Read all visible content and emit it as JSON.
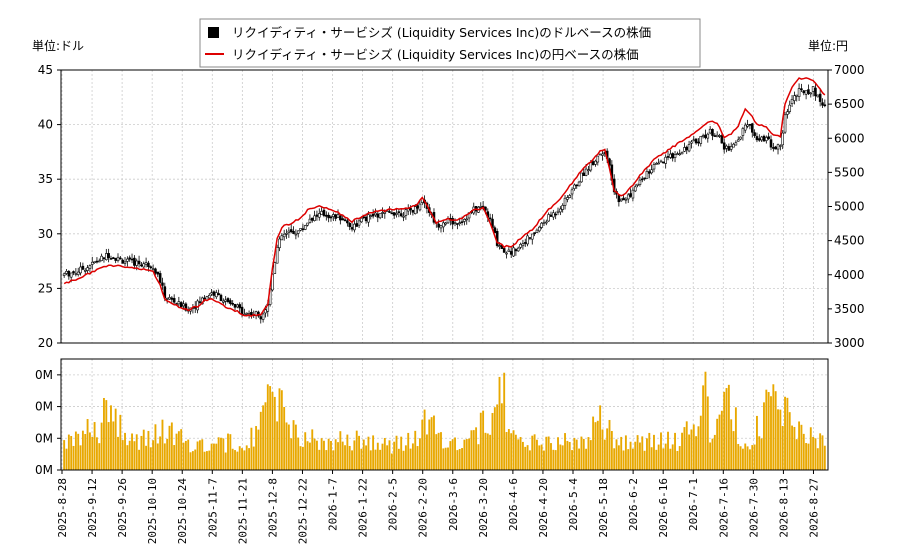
{
  "chart_data": {
    "type": "candlestick-line-bar",
    "legend": {
      "placement": "top-center",
      "entries": [
        {
          "label": "リクイディティ・サービシズ (Liquidity Services Inc)のドルベースの株価",
          "color": "#000000",
          "marker": "square"
        },
        {
          "label": "リクイディティ・サービシズ (Liquidity Services Inc)の円ベースの株価",
          "color": "#dd0000",
          "marker": "line"
        }
      ]
    },
    "left_unit": "単位:ドル",
    "right_unit": "単位:円",
    "left_axis": {
      "min": 20,
      "max": 45,
      "ticks": [
        "20",
        "25",
        "30",
        "35",
        "40",
        "45"
      ],
      "tick_values": [
        20,
        25,
        30,
        35,
        40,
        45
      ]
    },
    "right_axis": {
      "min": 3000,
      "max": 7000,
      "ticks": [
        "3000",
        "3500",
        "4000",
        "4500",
        "5000",
        "5500",
        "6000",
        "6500",
        "7000"
      ],
      "tick_values": [
        3000,
        3500,
        4000,
        4500,
        5000,
        5500,
        6000,
        6500,
        7000
      ]
    },
    "volume_axis": {
      "ticks": [
        "0M",
        "0M",
        "0M",
        "0M"
      ],
      "tick_values": [
        0,
        1,
        2,
        3
      ],
      "max": 3.5
    },
    "x_ticks": [
      "2025-8-28",
      "2025-9-12",
      "2025-9-26",
      "2025-10-10",
      "2025-10-24",
      "2025-11-7",
      "2025-11-21",
      "2025-12-8",
      "2025-12-22",
      "2026-1-7",
      "2026-1-22",
      "2026-2-5",
      "2026-2-20",
      "2026-3-6",
      "2026-3-20",
      "2026-4-6",
      "2026-4-20",
      "2026-5-4",
      "2026-5-18",
      "2026-6-2",
      "2026-6-16",
      "2026-7-1",
      "2026-7-16",
      "2026-7-30",
      "2026-8-13",
      "2026-8-27"
    ],
    "grid": true,
    "usd_keypoints": [
      [
        0,
        26.3
      ],
      [
        5,
        26.5
      ],
      [
        10,
        27.0
      ],
      [
        15,
        27.6
      ],
      [
        19,
        28.1
      ],
      [
        24,
        27.6
      ],
      [
        28,
        27.4
      ],
      [
        33,
        27.3
      ],
      [
        38,
        27.1
      ],
      [
        41,
        25.7
      ],
      [
        43,
        24.3
      ],
      [
        47,
        23.8
      ],
      [
        50,
        23.4
      ],
      [
        53,
        23.1
      ],
      [
        57,
        23.6
      ],
      [
        60,
        24.2
      ],
      [
        63,
        24.6
      ],
      [
        66,
        24.3
      ],
      [
        70,
        23.6
      ],
      [
        74,
        23.2
      ],
      [
        78,
        22.7
      ],
      [
        81,
        22.7
      ],
      [
        84,
        22.5
      ],
      [
        87,
        23.5
      ],
      [
        89,
        26.5
      ],
      [
        91,
        28.7
      ],
      [
        93,
        29.8
      ],
      [
        97,
        30.1
      ],
      [
        101,
        30.3
      ],
      [
        105,
        31.4
      ],
      [
        110,
        31.8
      ],
      [
        115,
        31.6
      ],
      [
        119,
        31.4
      ],
      [
        123,
        30.6
      ],
      [
        127,
        31.2
      ],
      [
        131,
        31.6
      ],
      [
        135,
        31.7
      ],
      [
        140,
        32.0
      ],
      [
        145,
        31.9
      ],
      [
        150,
        32.3
      ],
      [
        153,
        33.2
      ],
      [
        156,
        32.1
      ],
      [
        159,
        30.8
      ],
      [
        163,
        31.2
      ],
      [
        167,
        31.0
      ],
      [
        171,
        31.4
      ],
      [
        175,
        32.2
      ],
      [
        179,
        32.5
      ],
      [
        182,
        31.2
      ],
      [
        185,
        29.2
      ],
      [
        188,
        28.5
      ],
      [
        191,
        28.3
      ],
      [
        194,
        28.9
      ],
      [
        197,
        29.4
      ],
      [
        200,
        29.8
      ],
      [
        203,
        30.6
      ],
      [
        206,
        31.3
      ],
      [
        210,
        32.0
      ],
      [
        214,
        33.0
      ],
      [
        218,
        34.3
      ],
      [
        222,
        35.6
      ],
      [
        226,
        36.6
      ],
      [
        229,
        37.4
      ],
      [
        231,
        37.7
      ],
      [
        233,
        36.0
      ],
      [
        235,
        33.7
      ],
      [
        238,
        33.0
      ],
      [
        241,
        33.4
      ],
      [
        244,
        34.2
      ],
      [
        248,
        35.3
      ],
      [
        252,
        36.1
      ],
      [
        256,
        36.6
      ],
      [
        260,
        37.2
      ],
      [
        264,
        37.7
      ],
      [
        268,
        38.2
      ],
      [
        272,
        38.8
      ],
      [
        276,
        39.3
      ],
      [
        279,
        39.2
      ],
      [
        282,
        37.8
      ],
      [
        285,
        38.0
      ],
      [
        288,
        38.6
      ],
      [
        291,
        40.0
      ],
      [
        293,
        39.7
      ],
      [
        296,
        38.9
      ],
      [
        300,
        38.7
      ],
      [
        303,
        38.0
      ],
      [
        306,
        37.9
      ],
      [
        308,
        40.8
      ],
      [
        311,
        42.4
      ],
      [
        314,
        43.0
      ],
      [
        317,
        43.1
      ],
      [
        320,
        43.2
      ],
      [
        323,
        42.2
      ],
      [
        325,
        41.8
      ]
    ],
    "jpy_keypoints": [
      [
        0,
        3870
      ],
      [
        5,
        3930
      ],
      [
        10,
        4010
      ],
      [
        15,
        4080
      ],
      [
        19,
        4150
      ],
      [
        24,
        4120
      ],
      [
        28,
        4100
      ],
      [
        33,
        4090
      ],
      [
        38,
        4050
      ],
      [
        41,
        3850
      ],
      [
        43,
        3630
      ],
      [
        47,
        3560
      ],
      [
        50,
        3520
      ],
      [
        53,
        3490
      ],
      [
        57,
        3540
      ],
      [
        60,
        3620
      ],
      [
        63,
        3640
      ],
      [
        66,
        3600
      ],
      [
        70,
        3510
      ],
      [
        74,
        3460
      ],
      [
        78,
        3400
      ],
      [
        81,
        3410
      ],
      [
        84,
        3400
      ],
      [
        87,
        3570
      ],
      [
        89,
        4100
      ],
      [
        91,
        4530
      ],
      [
        93,
        4700
      ],
      [
        97,
        4760
      ],
      [
        101,
        4830
      ],
      [
        105,
        4980
      ],
      [
        110,
        5000
      ],
      [
        115,
        4940
      ],
      [
        119,
        4880
      ],
      [
        123,
        4780
      ],
      [
        127,
        4850
      ],
      [
        131,
        4920
      ],
      [
        135,
        4930
      ],
      [
        140,
        4960
      ],
      [
        145,
        4960
      ],
      [
        150,
        5010
      ],
      [
        153,
        5120
      ],
      [
        156,
        4960
      ],
      [
        159,
        4760
      ],
      [
        163,
        4820
      ],
      [
        167,
        4800
      ],
      [
        171,
        4850
      ],
      [
        175,
        4950
      ],
      [
        179,
        4970
      ],
      [
        182,
        4770
      ],
      [
        185,
        4480
      ],
      [
        188,
        4410
      ],
      [
        191,
        4420
      ],
      [
        194,
        4500
      ],
      [
        197,
        4590
      ],
      [
        200,
        4660
      ],
      [
        203,
        4790
      ],
      [
        206,
        4920
      ],
      [
        210,
        5040
      ],
      [
        214,
        5210
      ],
      [
        218,
        5390
      ],
      [
        222,
        5560
      ],
      [
        226,
        5700
      ],
      [
        229,
        5810
      ],
      [
        231,
        5840
      ],
      [
        233,
        5570
      ],
      [
        235,
        5230
      ],
      [
        238,
        5150
      ],
      [
        241,
        5230
      ],
      [
        244,
        5370
      ],
      [
        248,
        5540
      ],
      [
        252,
        5680
      ],
      [
        256,
        5780
      ],
      [
        260,
        5870
      ],
      [
        264,
        5960
      ],
      [
        268,
        6040
      ],
      [
        272,
        6160
      ],
      [
        276,
        6250
      ],
      [
        279,
        6230
      ],
      [
        282,
        6000
      ],
      [
        285,
        6060
      ],
      [
        288,
        6190
      ],
      [
        291,
        6430
      ],
      [
        293,
        6360
      ],
      [
        296,
        6210
      ],
      [
        300,
        6170
      ],
      [
        303,
        6050
      ],
      [
        306,
        6020
      ],
      [
        308,
        6500
      ],
      [
        311,
        6760
      ],
      [
        314,
        6880
      ],
      [
        317,
        6870
      ],
      [
        320,
        6850
      ],
      [
        323,
        6720
      ],
      [
        325,
        6640
      ]
    ],
    "volume_keypoints": [
      [
        0,
        1.0
      ],
      [
        15,
        1.4
      ],
      [
        19,
        2.3
      ],
      [
        28,
        1.0
      ],
      [
        35,
        1.0
      ],
      [
        42,
        1.3
      ],
      [
        55,
        0.9
      ],
      [
        70,
        0.9
      ],
      [
        83,
        1.1
      ],
      [
        89,
        3.2
      ],
      [
        91,
        2.3
      ],
      [
        100,
        1.1
      ],
      [
        112,
        0.9
      ],
      [
        123,
        1.0
      ],
      [
        131,
        1.0
      ],
      [
        140,
        0.8
      ],
      [
        150,
        1.0
      ],
      [
        155,
        1.6
      ],
      [
        165,
        0.9
      ],
      [
        175,
        1.1
      ],
      [
        182,
        1.8
      ],
      [
        186,
        3.8
      ],
      [
        190,
        1.0
      ],
      [
        200,
        0.9
      ],
      [
        215,
        0.9
      ],
      [
        225,
        1.0
      ],
      [
        228,
        1.9
      ],
      [
        235,
        1.0
      ],
      [
        250,
        0.9
      ],
      [
        262,
        1.0
      ],
      [
        269,
        1.4
      ],
      [
        274,
        2.9
      ],
      [
        276,
        1.3
      ],
      [
        285,
        2.5
      ],
      [
        288,
        1.1
      ],
      [
        294,
        1.0
      ],
      [
        304,
        2.6
      ],
      [
        307,
        2.0
      ],
      [
        315,
        1.2
      ],
      [
        325,
        1.1
      ]
    ],
    "n_days": 326
  }
}
